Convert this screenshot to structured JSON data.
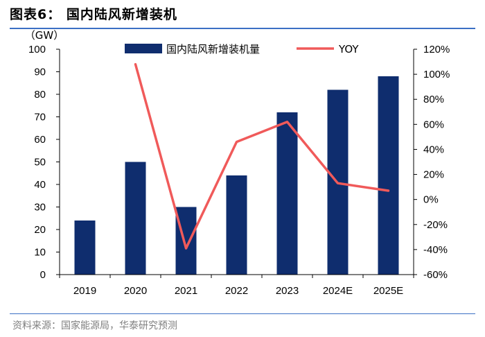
{
  "header": {
    "title": "图表6：  国内陆风新增装机"
  },
  "source": "资料来源：国家能源局，华泰研究预测",
  "colors": {
    "bar": "#0f2d6e",
    "line": "#f05a5a",
    "rule": "#3b6fc4"
  },
  "chart_data": {
    "type": "bar+line",
    "title": "国内陆风新增装机",
    "categories": [
      "2019",
      "2020",
      "2021",
      "2022",
      "2023",
      "2024E",
      "2025E"
    ],
    "series": [
      {
        "name": "国内陆风新增装机量",
        "type": "bar",
        "axis": "left",
        "values": [
          24,
          50,
          30,
          44,
          72,
          82,
          88
        ]
      },
      {
        "name": "YOY",
        "type": "line",
        "axis": "right",
        "values": [
          null,
          108,
          -39,
          46,
          62,
          13,
          7
        ]
      }
    ],
    "y_left": {
      "unit_label": "（GW）",
      "min": 0,
      "max": 100,
      "step": 10,
      "ticks": [
        "0",
        "10",
        "20",
        "30",
        "40",
        "50",
        "60",
        "70",
        "80",
        "90",
        "100"
      ]
    },
    "y_right": {
      "min": -60,
      "max": 120,
      "step": 20,
      "ticks": [
        "-60%",
        "-40%",
        "-20%",
        "0%",
        "20%",
        "40%",
        "60%",
        "80%",
        "100%",
        "120%"
      ]
    },
    "legend_position": "top-center"
  }
}
